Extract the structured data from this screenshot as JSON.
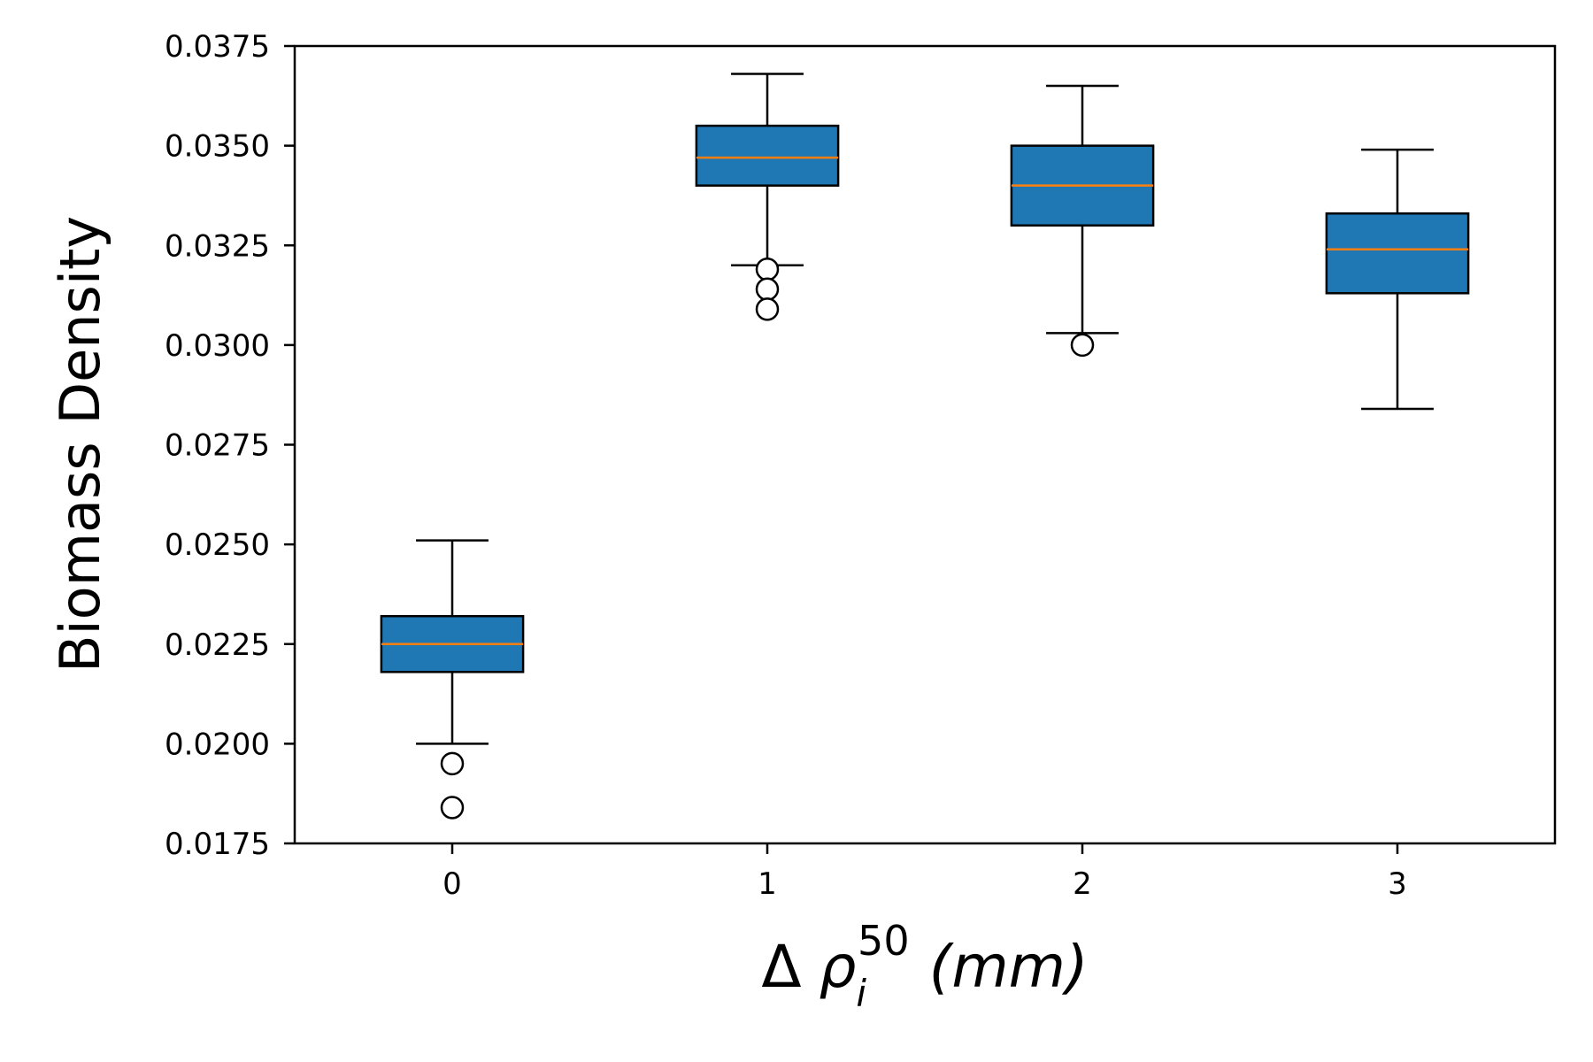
{
  "chart_data": {
    "type": "box",
    "title": "",
    "xlabel": "Δ ρ_i^50 (mm)",
    "xlabel_parts": {
      "delta": "Δ",
      "rho": "ρ",
      "sub": "i",
      "sup": "50",
      "unit": "(mm)"
    },
    "ylabel": "Biomass Density",
    "ylim": [
      0.0175,
      0.0375
    ],
    "yticks": [
      "0.0175",
      "0.0200",
      "0.0225",
      "0.0250",
      "0.0275",
      "0.0300",
      "0.0325",
      "0.0350",
      "0.0375"
    ],
    "categories": [
      "0",
      "1",
      "2",
      "3"
    ],
    "grid": false,
    "box_color": "#1f77b4",
    "median_color": "#ff7f0e",
    "boxes": [
      {
        "category": "0",
        "whisker_low": 0.02,
        "q1": 0.0218,
        "median": 0.0225,
        "q3": 0.0232,
        "whisker_high": 0.0251,
        "outliers": [
          0.0195,
          0.0184
        ]
      },
      {
        "category": "1",
        "whisker_low": 0.032,
        "q1": 0.034,
        "median": 0.0347,
        "q3": 0.0355,
        "whisker_high": 0.0368,
        "outliers": [
          0.0319,
          0.0314,
          0.0309
        ]
      },
      {
        "category": "2",
        "whisker_low": 0.0303,
        "q1": 0.033,
        "median": 0.034,
        "q3": 0.035,
        "whisker_high": 0.0365,
        "outliers": [
          0.03
        ]
      },
      {
        "category": "3",
        "whisker_low": 0.0284,
        "q1": 0.0313,
        "median": 0.0324,
        "q3": 0.0333,
        "whisker_high": 0.0349,
        "outliers": []
      }
    ]
  }
}
